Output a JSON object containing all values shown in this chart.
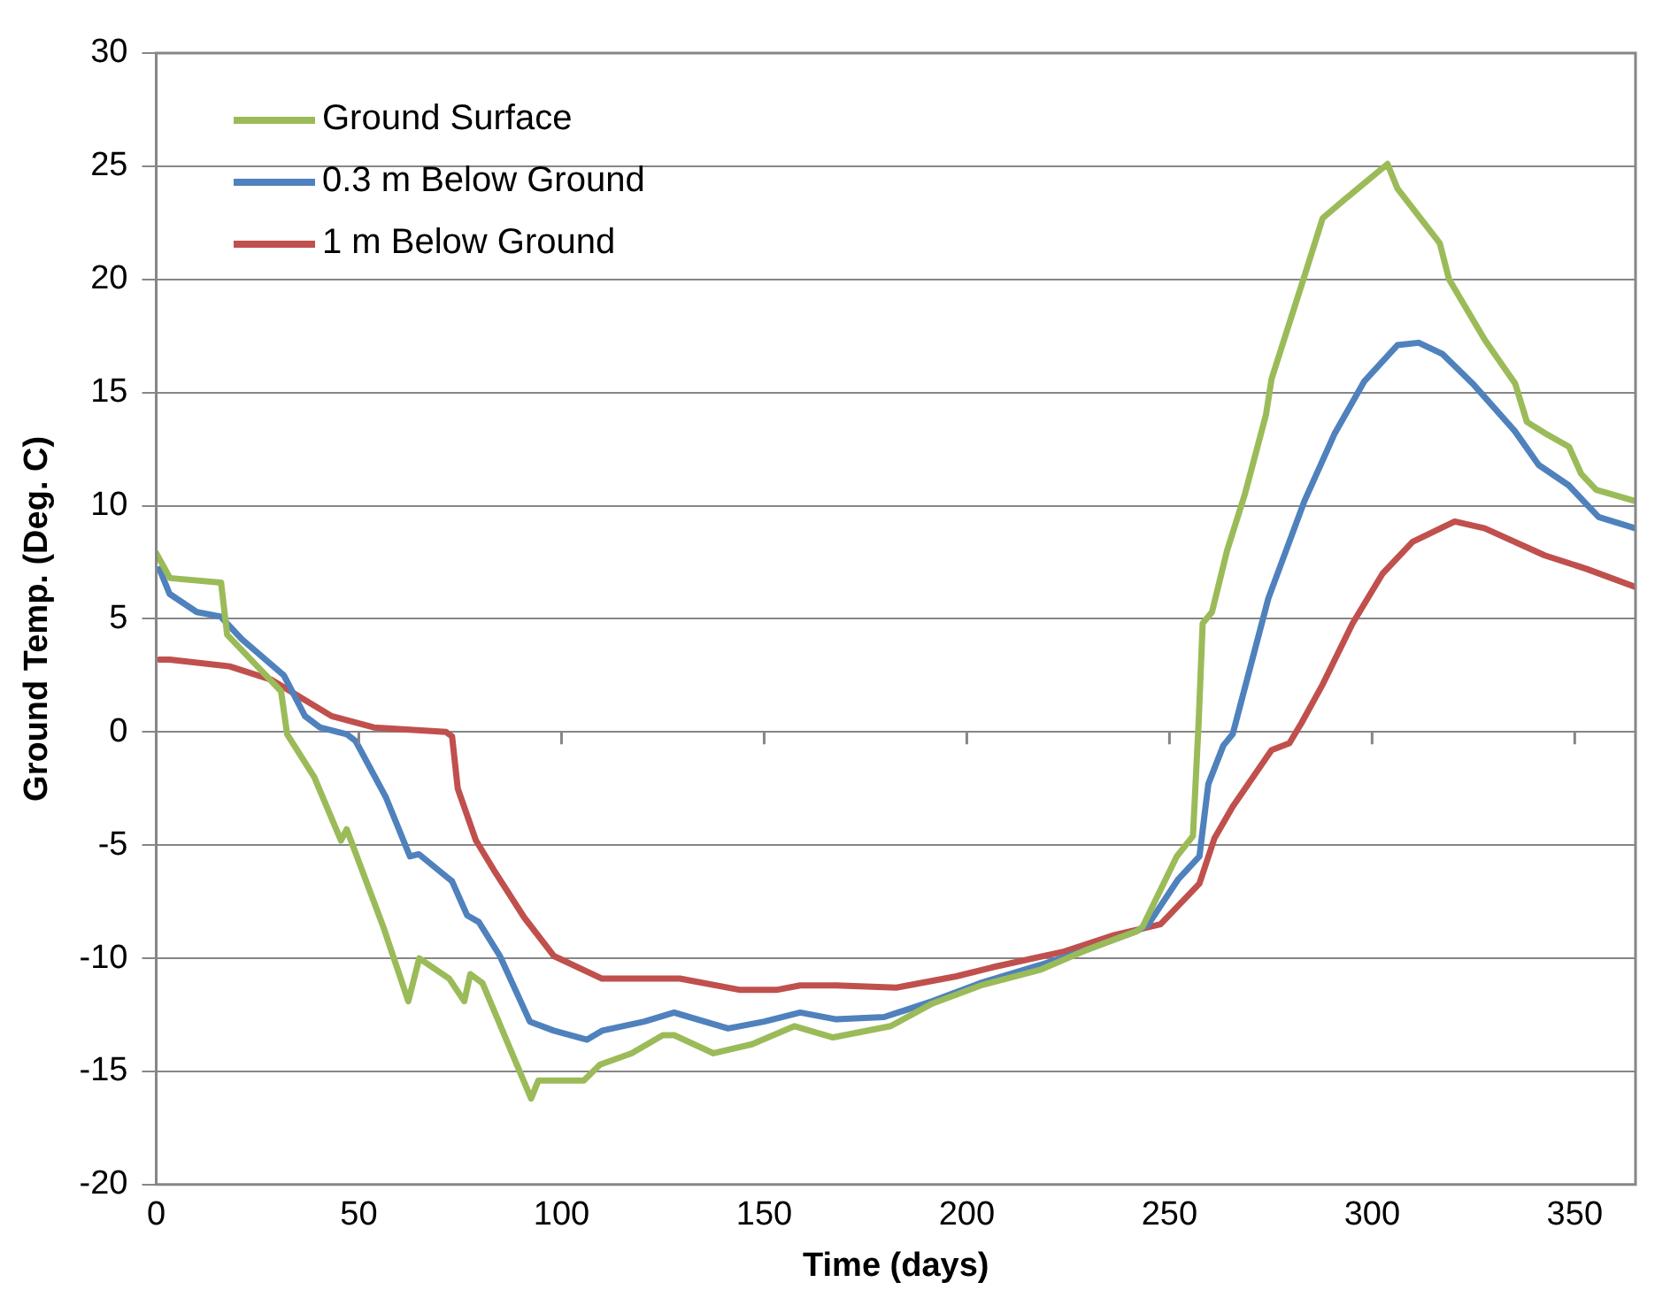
{
  "chart_data": {
    "type": "line",
    "xlabel": "Time (days)",
    "ylabel": "Ground Temp. (Deg. C)",
    "xlim": [
      0,
      365
    ],
    "xticks": [
      0,
      50,
      100,
      150,
      200,
      250,
      300,
      350
    ],
    "ylim": [
      -20,
      30
    ],
    "yticks": [
      -20,
      -15,
      -10,
      -5,
      0,
      5,
      10,
      15,
      20,
      25,
      30
    ],
    "grid": "y",
    "legend": "top left",
    "marker": "none",
    "line_style": "solid",
    "series": [
      {
        "name": "Ground Surface",
        "color": "#9bbb59",
        "x": [
          0,
          3.4,
          16,
          17.5,
          30.8,
          32.3,
          39,
          45.6,
          47,
          56,
          62.2,
          64.9,
          72.3,
          76,
          77.5,
          80.5,
          92.5,
          94.3,
          105.5,
          109.5,
          117.3,
          125,
          127.8,
          137.5,
          147,
          157.5,
          167,
          181.2,
          191.5,
          203.5,
          218.3,
          230,
          242,
          243.4,
          251.8,
          255.8,
          257.2,
          258.2,
          260.5,
          264.2,
          268.6,
          273.8,
          275.2,
          283.4,
          287.8,
          293.7,
          303.8,
          306.3,
          316.7,
          319,
          327.9,
          335.3,
          338.2,
          342.7,
          348.6,
          351.6,
          355.3,
          365
        ],
        "values": [
          7.9,
          6.8,
          6.6,
          4.3,
          1.8,
          -0.1,
          -2.0,
          -4.8,
          -4.3,
          -8.6,
          -11.9,
          -10.0,
          -10.9,
          -11.9,
          -10.7,
          -11.1,
          -16.2,
          -15.4,
          -15.4,
          -14.7,
          -14.2,
          -13.4,
          -13.4,
          -14.2,
          -13.8,
          -13.0,
          -13.5,
          -13.0,
          -12.0,
          -11.2,
          -10.5,
          -9.6,
          -8.8,
          -8.6,
          -5.5,
          -4.6,
          0.4,
          4.8,
          5.3,
          8.0,
          10.5,
          14.0,
          15.6,
          20.2,
          22.7,
          23.6,
          25.1,
          24.0,
          21.6,
          20.0,
          17.3,
          15.4,
          13.7,
          13.2,
          12.6,
          11.4,
          10.7,
          10.2
        ]
      },
      {
        "name": "0.3 m Below Ground",
        "color": "#4f81bd",
        "x": [
          0.8,
          3.3,
          10,
          15.9,
          21.1,
          31.5,
          36.7,
          40.4,
          47,
          49.2,
          56.7,
          62.6,
          64.8,
          73,
          76.7,
          79.6,
          84.8,
          92.2,
          98.1,
          106.3,
          110,
          120.4,
          127.8,
          141.1,
          150,
          158.9,
          167.8,
          179.6,
          191.5,
          203.3,
          218.1,
          230,
          241.9,
          244.8,
          252.2,
          257.4,
          259.6,
          263.3,
          265.6,
          274.4,
          283.3,
          290.8,
          298.1,
          306.3,
          311.5,
          317.4,
          324.8,
          335.2,
          341.1,
          348.5,
          355.9,
          365
        ],
        "values": [
          7.2,
          6.1,
          5.3,
          5.1,
          4.1,
          2.5,
          0.7,
          0.2,
          -0.1,
          -0.4,
          -2.9,
          -5.5,
          -5.4,
          -6.6,
          -8.1,
          -8.4,
          -9.9,
          -12.8,
          -13.2,
          -13.6,
          -13.2,
          -12.8,
          -12.4,
          -13.1,
          -12.8,
          -12.4,
          -12.7,
          -12.6,
          -11.9,
          -11.1,
          -10.3,
          -9.6,
          -8.8,
          -8.5,
          -6.5,
          -5.5,
          -2.3,
          -0.6,
          -0.1,
          5.9,
          10.2,
          13.2,
          15.5,
          17.1,
          17.2,
          16.7,
          15.4,
          13.3,
          11.8,
          10.9,
          9.5,
          9.0
        ]
      },
      {
        "name": "1 m Below Ground",
        "color": "#c0504d",
        "x": [
          0.8,
          3.3,
          18.1,
          28.5,
          35.9,
          43.3,
          53.7,
          71.5,
          73,
          74.4,
          78.9,
          83.3,
          90.8,
          98.1,
          110,
          129.2,
          144.1,
          153,
          158.9,
          167.8,
          182.6,
          197.4,
          206.3,
          224.1,
          235.9,
          247.8,
          257.4,
          261.1,
          265.6,
          275.2,
          279.6,
          282.6,
          287.8,
          295.2,
          302.6,
          310,
          320.4,
          327.8,
          342.6,
          353,
          365
        ],
        "values": [
          3.2,
          3.2,
          2.9,
          2.3,
          1.5,
          0.7,
          0.2,
          0.0,
          -0.2,
          -2.5,
          -4.8,
          -6.1,
          -8.2,
          -9.9,
          -10.9,
          -10.9,
          -11.4,
          -11.4,
          -11.2,
          -11.2,
          -11.3,
          -10.8,
          -10.4,
          -9.7,
          -9.0,
          -8.5,
          -6.7,
          -4.7,
          -3.3,
          -0.8,
          -0.5,
          0.4,
          2.1,
          4.8,
          7.0,
          8.4,
          9.3,
          9.0,
          7.8,
          7.2,
          6.4
        ]
      }
    ]
  }
}
